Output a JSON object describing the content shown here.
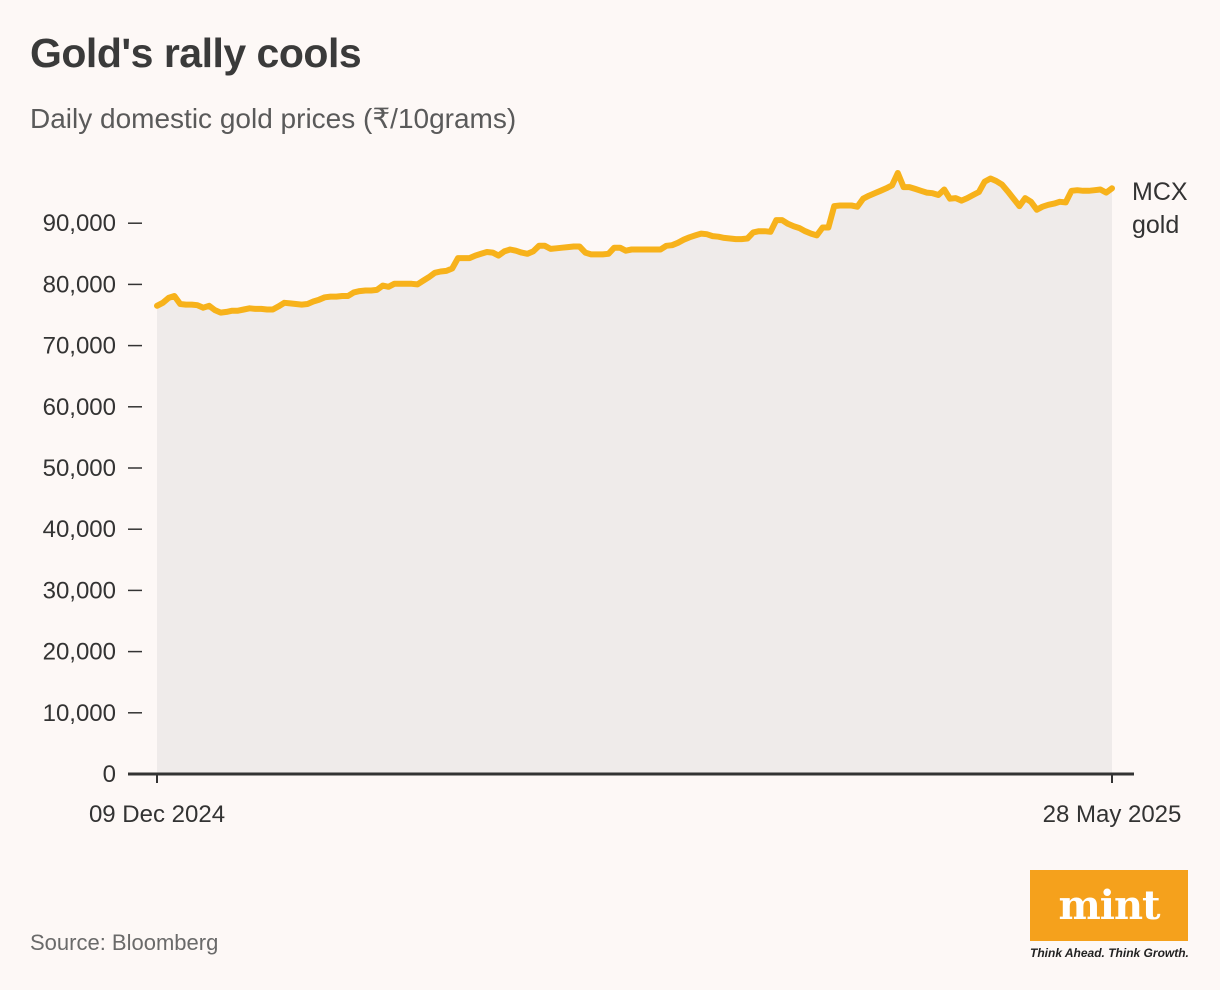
{
  "header": {
    "title": "Gold's rally cools",
    "subtitle": "Daily domestic gold prices (₹/10grams)"
  },
  "footer": {
    "source": "Source: Bloomberg",
    "logo": "mint",
    "tagline": "Think Ahead. Think Growth."
  },
  "colors": {
    "line": "#f7b21b",
    "area": "#efebea",
    "axis": "#333333",
    "background": "#fdf8f6",
    "logo_bg": "#f5a11c"
  },
  "chart_data": {
    "type": "area",
    "title": "Gold's rally cools",
    "subtitle": "Daily domestic gold prices (₹/10grams)",
    "xlabel": "",
    "ylabel": "",
    "x_tick_labels": [
      "09 Dec 2024",
      "28 May 2025"
    ],
    "y_ticks": [
      0,
      10000,
      20000,
      30000,
      40000,
      50000,
      60000,
      70000,
      80000,
      90000
    ],
    "y_tick_labels": [
      "0",
      "10,000",
      "20,000",
      "30,000",
      "40,000",
      "50,000",
      "60,000",
      "70,000",
      "80,000",
      "90,000"
    ],
    "ylim": [
      0,
      100000
    ],
    "grid": false,
    "series": [
      {
        "name": "MCX gold",
        "label_lines": [
          "MCX",
          "gold"
        ],
        "values": [
          76500,
          77000,
          77800,
          78100,
          76800,
          76700,
          76700,
          76600,
          76200,
          76500,
          75800,
          75400,
          75500,
          75700,
          75700,
          75900,
          76100,
          76000,
          76000,
          75900,
          75900,
          76400,
          77000,
          76900,
          76800,
          76700,
          76800,
          77200,
          77500,
          77900,
          78000,
          78000,
          78100,
          78100,
          78700,
          78900,
          79000,
          79000,
          79100,
          79800,
          79600,
          80100,
          80100,
          80100,
          80100,
          80000,
          80600,
          81200,
          81900,
          82100,
          82200,
          82600,
          84300,
          84300,
          84300,
          84700,
          85000,
          85300,
          85200,
          84700,
          85400,
          85700,
          85500,
          85200,
          85000,
          85400,
          86300,
          86300,
          85800,
          85900,
          86000,
          86100,
          86200,
          86200,
          85200,
          84900,
          84900,
          84900,
          85000,
          86000,
          86000,
          85500,
          85700,
          85700,
          85700,
          85700,
          85700,
          85700,
          86300,
          86400,
          86800,
          87300,
          87700,
          88000,
          88300,
          88200,
          87900,
          87800,
          87600,
          87500,
          87400,
          87400,
          87500,
          88500,
          88700,
          88700,
          88600,
          90500,
          90500,
          89900,
          89500,
          89200,
          88700,
          88300,
          88000,
          89300,
          89300,
          92800,
          92900,
          92900,
          92900,
          92700,
          94000,
          94500,
          94900,
          95300,
          95700,
          96200,
          98200,
          95900,
          95900,
          95600,
          95300,
          95000,
          94900,
          94600,
          95500,
          94000,
          94100,
          93700,
          94100,
          94600,
          95100,
          96800,
          97300,
          96900,
          96300,
          95200,
          94000,
          92800,
          94100,
          93500,
          92200,
          92700,
          93000,
          93200,
          93500,
          93400,
          95300,
          95400,
          95300,
          95300,
          95400,
          95500,
          95000,
          95700
        ]
      }
    ]
  }
}
